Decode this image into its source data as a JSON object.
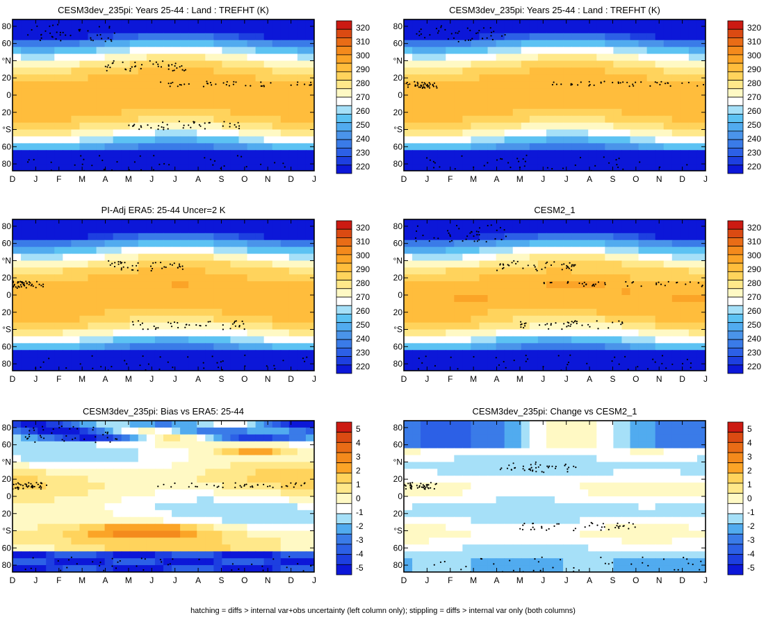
{
  "footer": "hatching = diffs > internal var+obs uncertainty (left column only); stippling = diffs > internal var only (both columns)",
  "months": [
    "D",
    "J",
    "F",
    "M",
    "A",
    "M",
    "J",
    "J",
    "A",
    "S",
    "O",
    "N",
    "D",
    "J"
  ],
  "lat_labels": [
    "80",
    "60",
    "°N",
    "20",
    "0",
    "20",
    "°S",
    "60",
    "80"
  ],
  "colors": {
    "temp": [
      "#0c17d8",
      "#1d3fe0",
      "#2c60e6",
      "#3a7be8",
      "#4a94ea",
      "#51abef",
      "#5cc2f3",
      "#a6e0f8",
      "#ffffff",
      "#fff9c4",
      "#ffe88a",
      "#ffd35c",
      "#ffbd3c",
      "#fba427",
      "#f48a1c",
      "#e96c16",
      "#db4a12",
      "#cc1a12"
    ],
    "bias": [
      "#0c17d8",
      "#1d3fe0",
      "#2c60e6",
      "#3a7be8",
      "#51abef",
      "#a6e0f8",
      "#ffffff",
      "#fff9c4",
      "#ffe88a",
      "#ffd35c",
      "#fba427",
      "#f48a1c",
      "#e96c16",
      "#db4a12",
      "#cc1a12"
    ]
  },
  "colorbars": {
    "temp": {
      "labels": [
        "320",
        "310",
        "300",
        "290",
        "280",
        "270",
        "260",
        "250",
        "240",
        "230",
        "220"
      ]
    },
    "bias": {
      "labels": [
        "5",
        "4",
        "3",
        "2",
        "1",
        "0",
        "-1",
        "-2",
        "-3",
        "-4",
        "-5"
      ]
    }
  },
  "chart_data": [
    {
      "id": "p1",
      "type": "heatmap",
      "title": "CESM3dev_235pi: Years 25-44 : Land : TREFHT (K)",
      "field": "temp",
      "units": "K",
      "clim": [
        215,
        325
      ],
      "xlabel": "",
      "ylabel": ""
    },
    {
      "id": "p2",
      "type": "heatmap",
      "title": "CESM3dev_235pi: Years 25-44 : Land : TREFHT (K)",
      "field": "temp",
      "units": "K",
      "clim": [
        215,
        325
      ],
      "xlabel": "",
      "ylabel": ""
    },
    {
      "id": "p3",
      "type": "heatmap",
      "title": "PI-Adj ERA5: 25-44 Uncer=2 K",
      "field": "temp",
      "units": "K",
      "clim": [
        215,
        325
      ],
      "xlabel": "",
      "ylabel": ""
    },
    {
      "id": "p4",
      "type": "heatmap",
      "title": "CESM2_1",
      "field": "temp",
      "units": "K",
      "clim": [
        215,
        325
      ],
      "xlabel": "",
      "ylabel": ""
    },
    {
      "id": "p5",
      "type": "heatmap",
      "title": "CESM3dev_235pi: Bias vs ERA5: 25-44",
      "field": "bias",
      "units": "K",
      "clim": [
        -5.5,
        5.5
      ],
      "xlabel": "",
      "ylabel": ""
    },
    {
      "id": "p6",
      "type": "heatmap",
      "title": "CESM3dev_235pi: Change vs CESM2_1",
      "field": "change",
      "units": "K",
      "clim": [
        -5.5,
        5.5
      ],
      "xlabel": "",
      "ylabel": ""
    }
  ]
}
